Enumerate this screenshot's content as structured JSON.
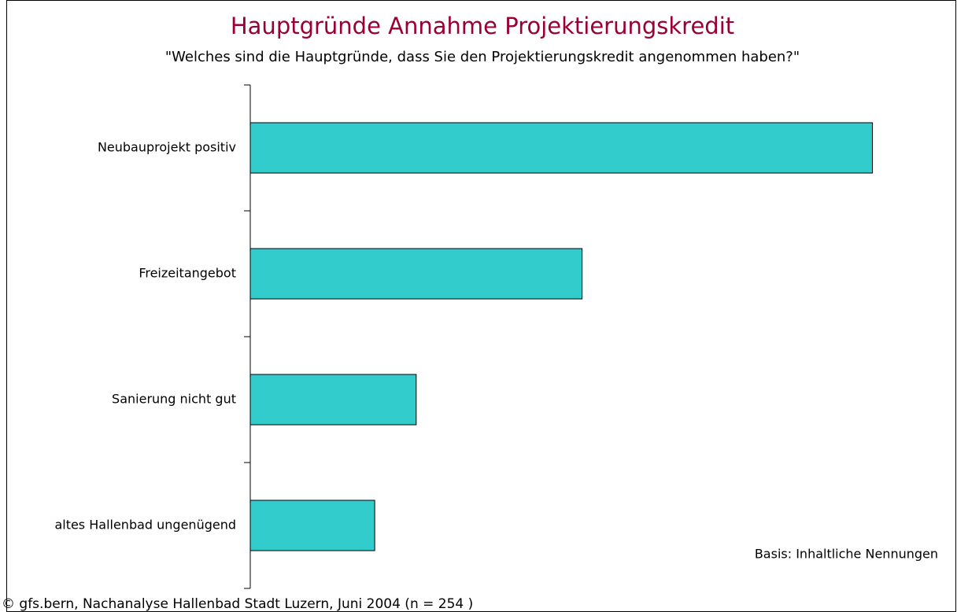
{
  "chart_data": {
    "type": "bar",
    "orientation": "horizontal",
    "title": "Hauptgründe Annahme Projektierungskredit",
    "subtitle": "\"Welches sind die Hauptgründe, dass Sie den Projektierungskredit angenommen haben?\"",
    "categories": [
      "Neubauprojekt positiv",
      "Freizeitangebot",
      "Sanierung nicht gut",
      "altes Hallenbad ungenügend"
    ],
    "values": [
      60,
      32,
      16,
      12
    ],
    "color": "#33cccc",
    "xlim": [
      0,
      68
    ],
    "annotation": "Basis: Inhaltliche Nennungen",
    "source": "© gfs.bern, Nachanalyse Hallenbad Stadt Luzern, Juni 2004 (n = 254 )"
  }
}
